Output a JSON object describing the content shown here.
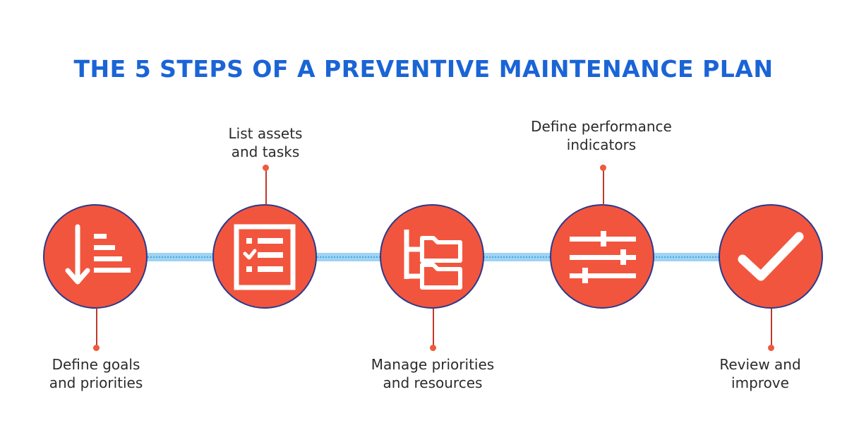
{
  "title": "THE 5 STEPS OF A PREVENTIVE MAINTENANCE PLAN",
  "colors": {
    "title": "#1a64d6",
    "circle_fill": "#f2553d",
    "circle_border": "#2a3a8c",
    "track": "#9fd3f3",
    "connector_dot": "#ef5a3c",
    "icon": "#ffffff",
    "label_text": "#2b2b2b"
  },
  "steps": [
    {
      "icon": "sort-descending-icon",
      "label_line1": "Define goals",
      "label_line2": "and priorities",
      "label_position": "below"
    },
    {
      "icon": "checklist-icon",
      "label_line1": "List assets",
      "label_line2": "and tasks",
      "label_position": "above"
    },
    {
      "icon": "folder-tree-icon",
      "label_line1": "Manage priorities",
      "label_line2": "and resources",
      "label_position": "below"
    },
    {
      "icon": "sliders-icon",
      "label_line1": "Define performance",
      "label_line2": "indicators",
      "label_position": "above"
    },
    {
      "icon": "checkmark-icon",
      "label_line1": "Review and",
      "label_line2": "improve",
      "label_position": "below"
    }
  ]
}
